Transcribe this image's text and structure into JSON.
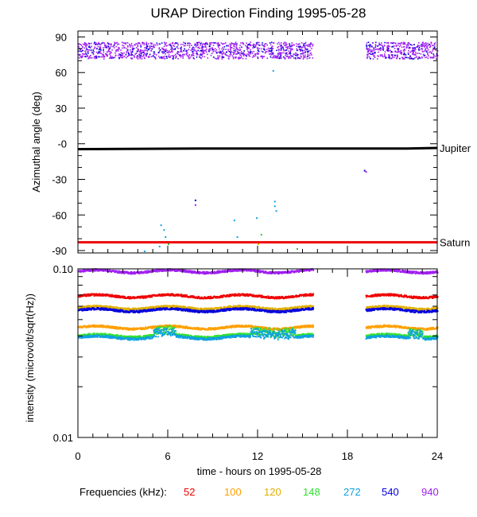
{
  "title": "URAP Direction Finding  1995-05-28",
  "chart_data": [
    {
      "type": "scatter",
      "panel": "azimuth",
      "ylabel": "Azimuthal angle (deg)",
      "ylim": [
        -92,
        95
      ],
      "yticks": [
        90,
        60,
        30,
        0,
        -30,
        -60,
        -90
      ],
      "ytick_labels": [
        "90",
        "60",
        "30",
        "-0",
        "-30",
        "-60",
        "-90"
      ],
      "xlim": [
        0,
        24
      ],
      "reference_lines": [
        {
          "name": "Jupiter",
          "values": [
            [
              0,
              -4.5
            ],
            [
              8,
              -4
            ],
            [
              22,
              -4
            ],
            [
              24,
              -3.5
            ]
          ],
          "color": "#000000"
        },
        {
          "name": "Saturn",
          "values": [
            [
              0,
              -83
            ],
            [
              24,
              -83
            ]
          ],
          "color": "#ee0000"
        }
      ],
      "series": [
        {
          "name": "940",
          "color": "#a020f0",
          "points_desc": "dense band",
          "x_ranges": [
            [
              0,
              15.7
            ],
            [
              19.2,
              24
            ]
          ],
          "y_center": 79,
          "y_spread": 7
        },
        {
          "name": "540",
          "color": "#0000dd",
          "points_desc": "mixed in band",
          "x_ranges": [
            [
              0,
              15.7
            ],
            [
              19.2,
              24
            ]
          ],
          "y_center": 79,
          "y_spread": 7
        }
      ],
      "scatter_points": [
        {
          "x": 5.5,
          "y": -68,
          "color": "#10a0e0"
        },
        {
          "x": 5.7,
          "y": -72,
          "color": "#10a0e0"
        },
        {
          "x": 5.8,
          "y": -78,
          "color": "#10a0e0"
        },
        {
          "x": 5.9,
          "y": -82,
          "color": "#10a0e0"
        },
        {
          "x": 6.0,
          "y": -84,
          "color": "#30c030"
        },
        {
          "x": 5.4,
          "y": -86,
          "color": "#10a0e0"
        },
        {
          "x": 4.4,
          "y": -90,
          "color": "#10a0e0"
        },
        {
          "x": 7.8,
          "y": -47,
          "color": "#0000dd"
        },
        {
          "x": 7.8,
          "y": -51,
          "color": "#a020f0"
        },
        {
          "x": 10.4,
          "y": -64,
          "color": "#10a0e0"
        },
        {
          "x": 10.6,
          "y": -78,
          "color": "#10a0e0"
        },
        {
          "x": 11.9,
          "y": -62,
          "color": "#10a0e0"
        },
        {
          "x": 12.0,
          "y": -84,
          "color": "#e0b000"
        },
        {
          "x": 12.2,
          "y": -76,
          "color": "#30c030"
        },
        {
          "x": 13.1,
          "y": -48,
          "color": "#10a0e0"
        },
        {
          "x": 13.1,
          "y": -52,
          "color": "#10a0e0"
        },
        {
          "x": 13.2,
          "y": -56,
          "color": "#10a0e0"
        },
        {
          "x": 13.0,
          "y": 62,
          "color": "#10a0e0"
        },
        {
          "x": 14.6,
          "y": -88,
          "color": "#30c030"
        },
        {
          "x": 19.1,
          "y": -22,
          "color": "#0000dd"
        },
        {
          "x": 19.2,
          "y": -23,
          "color": "#a020f0"
        }
      ]
    },
    {
      "type": "scatter",
      "panel": "intensity",
      "ylabel": "intensity (microvolt/sqrt(Hz))",
      "yscale": "log",
      "ylim": [
        0.01,
        0.1
      ],
      "ytick_labels": [
        "0.10",
        "0.01"
      ],
      "xlim": [
        0,
        24
      ],
      "xticks": [
        0,
        6,
        12,
        18,
        24
      ],
      "xtick_labels": [
        "0",
        "6",
        "12",
        "18",
        "24"
      ],
      "xlabel": "time - hours on 1995-05-28",
      "x_ranges": [
        [
          0,
          15.7
        ],
        [
          19.2,
          24
        ]
      ],
      "series": [
        {
          "name": "940",
          "color": "#a020f0",
          "level": 0.0975
        },
        {
          "name": "52",
          "color": "#ee0000",
          "level": 0.0695
        },
        {
          "name": "120",
          "color": "#e0b000",
          "level": 0.0593
        },
        {
          "name": "540",
          "color": "#0000dd",
          "level": 0.0574
        },
        {
          "name": "100",
          "color": "#ffa000",
          "level": 0.0453
        },
        {
          "name": "148",
          "color": "#30e030",
          "level": 0.0405
        },
        {
          "name": "272",
          "color": "#10a0e0",
          "level": 0.0395
        }
      ]
    }
  ],
  "legend": {
    "label": "Frequencies (kHz):",
    "items": [
      {
        "text": "52",
        "color": "#ee0000"
      },
      {
        "text": "100",
        "color": "#ffa000"
      },
      {
        "text": "120",
        "color": "#e0b000"
      },
      {
        "text": "148",
        "color": "#30e030"
      },
      {
        "text": "272",
        "color": "#10a0e0"
      },
      {
        "text": "540",
        "color": "#0000dd"
      },
      {
        "text": "940",
        "color": "#a020f0"
      }
    ]
  }
}
